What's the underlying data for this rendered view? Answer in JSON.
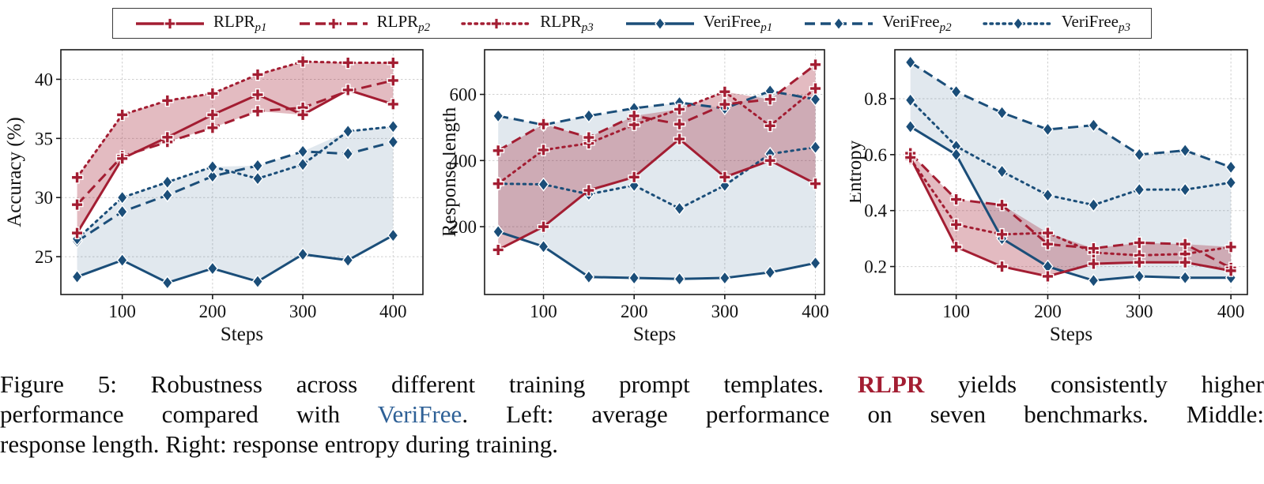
{
  "colors": {
    "rlpr_red": "#A31D32",
    "verifree_blue": "#1B4E79",
    "caption_verifree_blue": "#2E6096",
    "rlpr_band": "#A31D32",
    "verifree_band": "#1B4E79"
  },
  "legend": {
    "entries": [
      {
        "series": "RLPR_p1",
        "label": "RLPR",
        "sub": "p1",
        "color": "#A31D32",
        "line": "solid",
        "marker": "plus"
      },
      {
        "series": "RLPR_p2",
        "label": "RLPR",
        "sub": "p2",
        "color": "#A31D32",
        "line": "dashed",
        "marker": "plus"
      },
      {
        "series": "RLPR_p3",
        "label": "RLPR",
        "sub": "p3",
        "color": "#A31D32",
        "line": "dotted",
        "marker": "plus"
      },
      {
        "series": "VeriFree_p1",
        "label": "VeriFree",
        "sub": "p1",
        "color": "#1B4E79",
        "line": "solid",
        "marker": "diamond"
      },
      {
        "series": "VeriFree_p2",
        "label": "VeriFree",
        "sub": "p2",
        "color": "#1B4E79",
        "line": "dashed",
        "marker": "diamond"
      },
      {
        "series": "VeriFree_p3",
        "label": "VeriFree",
        "sub": "p3",
        "color": "#1B4E79",
        "line": "dotted",
        "marker": "diamond"
      }
    ]
  },
  "chart_data": [
    {
      "type": "line",
      "id": "accuracy",
      "ylabel": "Accuracy (%)",
      "xlabel": "Steps",
      "x": [
        50,
        100,
        150,
        200,
        250,
        300,
        350,
        400
      ],
      "xticks": [
        100,
        200,
        300,
        400
      ],
      "yticks": [
        25,
        30,
        35,
        40
      ],
      "xlim": [
        32,
        433
      ],
      "ylim": [
        21.8,
        42.5
      ],
      "grid": true,
      "series": {
        "RLPR_p1": [
          27.0,
          33.3,
          35.1,
          37.0,
          38.7,
          37.0,
          39.1,
          37.9
        ],
        "RLPR_p2": [
          29.4,
          33.5,
          34.7,
          35.9,
          37.3,
          37.6,
          39.0,
          39.9
        ],
        "RLPR_p3": [
          31.7,
          37.0,
          38.2,
          38.8,
          40.4,
          41.5,
          41.4,
          41.4
        ],
        "VeriFree_p1": [
          23.3,
          24.7,
          22.8,
          24.0,
          22.9,
          25.2,
          24.7,
          26.8
        ],
        "VeriFree_p2": [
          26.3,
          28.8,
          30.2,
          31.8,
          32.7,
          33.9,
          33.7,
          34.7
        ],
        "VeriFree_p3": [
          26.5,
          30.0,
          31.3,
          32.6,
          31.6,
          32.8,
          35.6,
          36.0
        ]
      },
      "bands": [
        {
          "name": "verifree-band",
          "series": [
            "VeriFree_p1",
            "VeriFree_p2",
            "VeriFree_p3"
          ],
          "color": "#1B4E79",
          "opacity": 0.13
        },
        {
          "name": "rlpr-band",
          "series": [
            "RLPR_p1",
            "RLPR_p2",
            "RLPR_p3"
          ],
          "color": "#A31D32",
          "opacity": 0.3
        }
      ]
    },
    {
      "type": "line",
      "id": "response-length",
      "ylabel": "Response length",
      "xlabel": "Steps",
      "x": [
        50,
        100,
        150,
        200,
        250,
        300,
        350,
        400
      ],
      "xticks": [
        100,
        200,
        300,
        400
      ],
      "yticks": [
        200,
        400,
        600
      ],
      "xlim": [
        35,
        410
      ],
      "ylim": [
        -5,
        735
      ],
      "grid": true,
      "series": {
        "RLPR_p1": [
          130,
          200,
          310,
          350,
          465,
          350,
          400,
          330
        ],
        "RLPR_p2": [
          430,
          510,
          470,
          535,
          510,
          570,
          585,
          690
        ],
        "RLPR_p3": [
          330,
          432,
          452,
          508,
          555,
          608,
          505,
          618
        ],
        "VeriFree_p1": [
          185,
          140,
          48,
          45,
          42,
          45,
          62,
          90
        ],
        "VeriFree_p2": [
          535,
          508,
          535,
          558,
          575,
          558,
          610,
          585
        ],
        "VeriFree_p3": [
          330,
          328,
          298,
          325,
          255,
          325,
          420,
          440
        ]
      },
      "bands": [
        {
          "name": "verifree-band",
          "series": [
            "VeriFree_p1",
            "VeriFree_p2",
            "VeriFree_p3"
          ],
          "color": "#1B4E79",
          "opacity": 0.13
        },
        {
          "name": "rlpr-band",
          "series": [
            "RLPR_p1",
            "RLPR_p2",
            "RLPR_p3"
          ],
          "color": "#A31D32",
          "opacity": 0.3
        }
      ]
    },
    {
      "type": "line",
      "id": "entropy",
      "ylabel": "Entropy",
      "xlabel": "Steps",
      "x": [
        50,
        100,
        150,
        200,
        250,
        300,
        350,
        400
      ],
      "xticks": [
        100,
        200,
        300,
        400
      ],
      "yticks": [
        0.2,
        0.4,
        0.6,
        0.8
      ],
      "xlim": [
        33,
        418
      ],
      "ylim": [
        0.1,
        0.975
      ],
      "grid": true,
      "series": {
        "RLPR_p1": [
          0.59,
          0.27,
          0.2,
          0.165,
          0.21,
          0.215,
          0.215,
          0.185
        ],
        "RLPR_p2": [
          0.605,
          0.44,
          0.42,
          0.28,
          0.265,
          0.285,
          0.28,
          0.195
        ],
        "RLPR_p3": [
          0.585,
          0.35,
          0.315,
          0.32,
          0.25,
          0.24,
          0.245,
          0.27
        ],
        "VeriFree_p1": [
          0.7,
          0.6,
          0.3,
          0.2,
          0.15,
          0.165,
          0.16,
          0.16
        ],
        "VeriFree_p2": [
          0.93,
          0.825,
          0.75,
          0.69,
          0.705,
          0.6,
          0.615,
          0.555
        ],
        "VeriFree_p3": [
          0.795,
          0.63,
          0.54,
          0.455,
          0.42,
          0.475,
          0.475,
          0.5
        ]
      },
      "bands": [
        {
          "name": "verifree-band",
          "series": [
            "VeriFree_p1",
            "VeriFree_p2",
            "VeriFree_p3"
          ],
          "color": "#1B4E79",
          "opacity": 0.13
        },
        {
          "name": "rlpr-band",
          "series": [
            "RLPR_p1",
            "RLPR_p2",
            "RLPR_p3"
          ],
          "color": "#A31D32",
          "opacity": 0.3
        }
      ]
    }
  ],
  "caption": {
    "line1": {
      "pre": "Figure 5: Robustness across different training prompt templates. ",
      "highlight": "RLPR",
      "post": " yields consistently higher"
    },
    "line2": {
      "pre": "performance compared with ",
      "highlight": "VeriFree",
      "post": ". Left: average performance on seven benchmarks. Middle:"
    },
    "line3": {
      "text": "response length. Right: response entropy during training."
    }
  }
}
